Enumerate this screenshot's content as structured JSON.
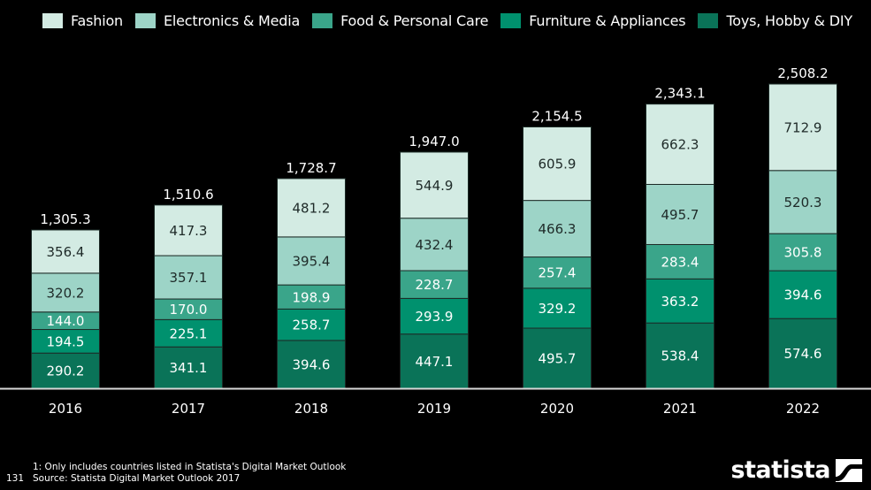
{
  "chart_data": {
    "type": "bar",
    "stacked": true,
    "title": "",
    "xlabel": "",
    "ylabel": "",
    "ylim": [
      0,
      2508.2
    ],
    "grid": false,
    "legend_position": "top",
    "categories": [
      "2016",
      "2017",
      "2018",
      "2019",
      "2020",
      "2021",
      "2022"
    ],
    "totals": [
      "1,305.3",
      "1,510.6",
      "1,728.7",
      "1,947.0",
      "2,154.5",
      "2,343.1",
      "2,508.2"
    ],
    "series": [
      {
        "name": "Toys, Hobby & DIY",
        "color": "#0a7358",
        "label_color": "#ffffff",
        "values": [
          290.2,
          341.1,
          394.6,
          447.1,
          495.7,
          538.4,
          574.6
        ]
      },
      {
        "name": "Furniture & Appliances",
        "color": "#00916e",
        "label_color": "#ffffff",
        "values": [
          194.5,
          225.1,
          258.7,
          293.9,
          329.2,
          363.2,
          394.6
        ]
      },
      {
        "name": "Food & Personal Care",
        "color": "#3aa58a",
        "label_color": "#ffffff",
        "values": [
          144.0,
          170.0,
          198.9,
          228.7,
          257.4,
          283.4,
          305.8
        ]
      },
      {
        "name": "Electronics & Media",
        "color": "#9dd4c7",
        "label_color": "#1e2a28",
        "values": [
          320.2,
          357.1,
          395.4,
          432.4,
          466.3,
          495.7,
          520.3
        ]
      },
      {
        "name": "Fashion",
        "color": "#d3ebe3",
        "label_color": "#1e2a28",
        "values": [
          356.4,
          417.3,
          481.2,
          544.9,
          605.9,
          662.3,
          712.9
        ]
      }
    ]
  },
  "legend": [
    {
      "label": "Fashion",
      "color": "#d3ebe3"
    },
    {
      "label": "Electronics & Media",
      "color": "#9dd4c7"
    },
    {
      "label": "Food & Personal Care",
      "color": "#3aa58a"
    },
    {
      "label": "Furniture & Appliances",
      "color": "#00916e"
    },
    {
      "label": "Toys, Hobby & DIY",
      "color": "#0a7358"
    }
  ],
  "footer": {
    "note": "1: Only includes countries listed in Statista's Digital Market Outlook",
    "source": "Source: Statista Digital Market Outlook 2017",
    "page_number": "131",
    "logo": "statista"
  }
}
